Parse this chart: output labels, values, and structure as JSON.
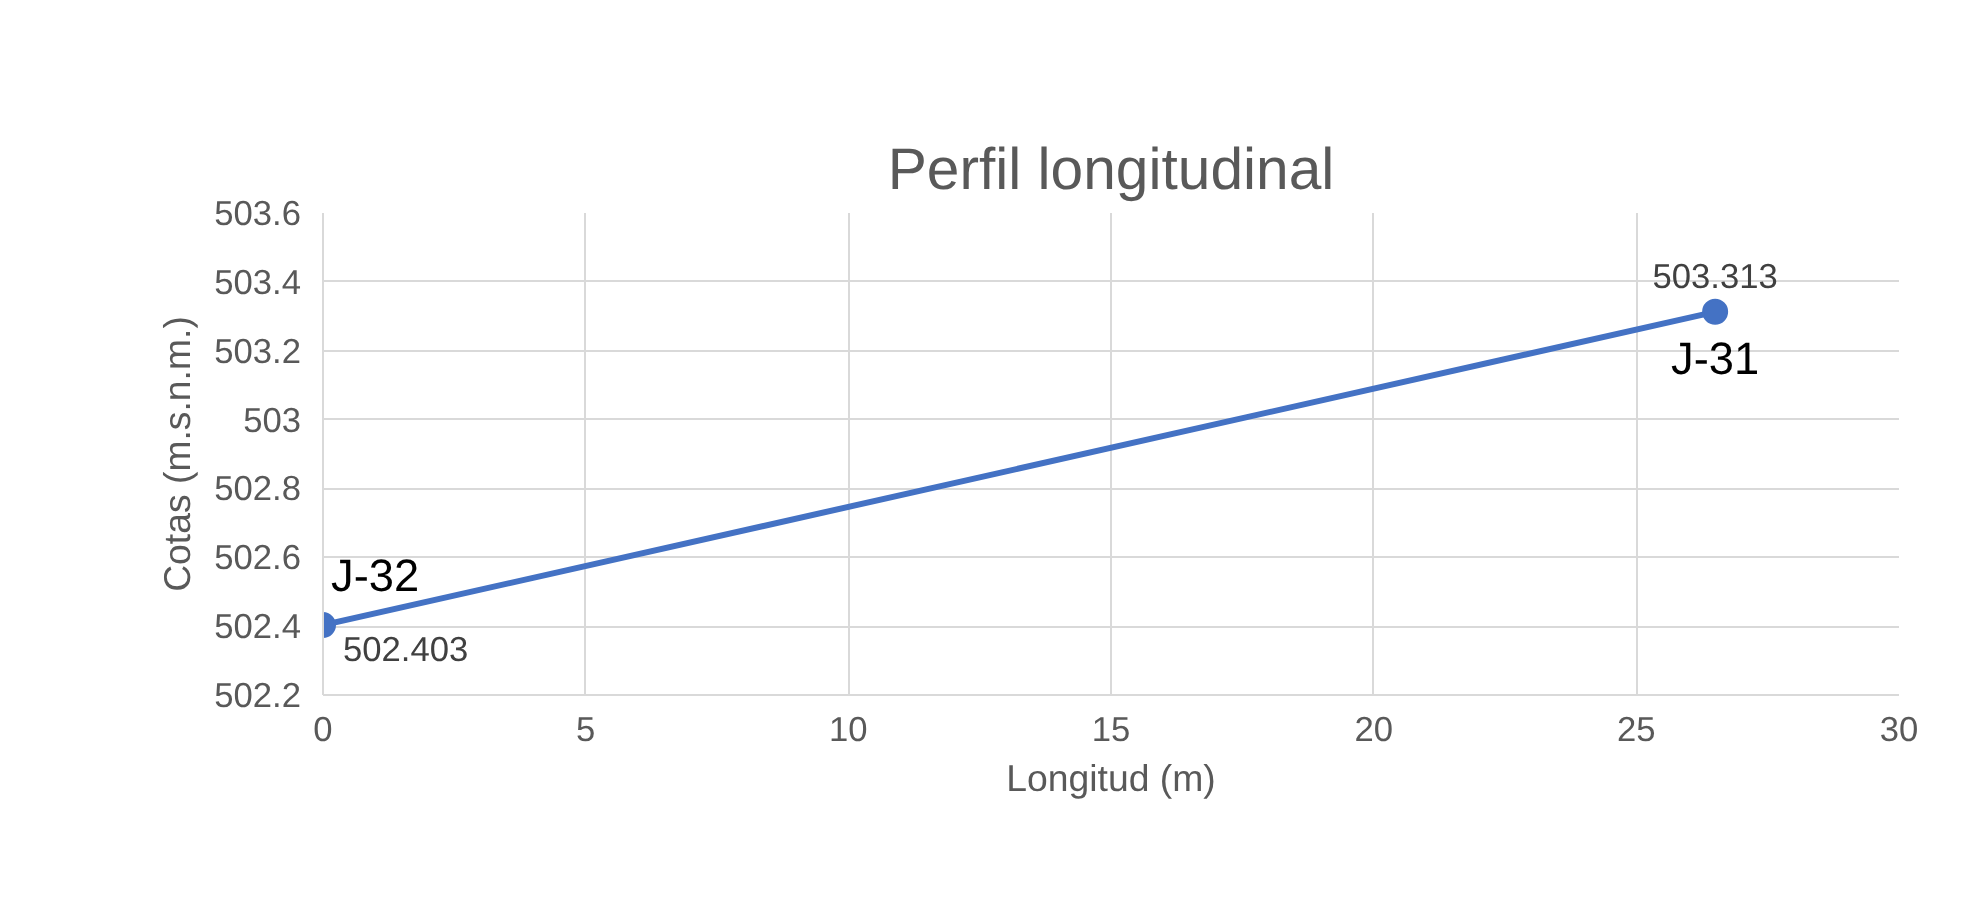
{
  "chart_data": {
    "type": "line",
    "title": "Perfil longitudinal",
    "xlabel": "Longitud (m)",
    "ylabel": "Cotas (m.s.n.m.)",
    "x": [
      0,
      26.5
    ],
    "series": [
      {
        "color": "#4472c4",
        "values": [
          502.403,
          503.313
        ],
        "value_labels": [
          "502.403",
          "503.313"
        ]
      }
    ],
    "annotations": [
      {
        "text": "J-32",
        "x": 0,
        "y": 502.403
      },
      {
        "text": "J-31",
        "x": 26.5,
        "y": 503.313
      }
    ],
    "xlim": [
      0,
      30
    ],
    "xticks": [
      0,
      5,
      10,
      15,
      20,
      25,
      30
    ],
    "ylim": [
      502.2,
      503.6
    ],
    "yticks": [
      502.2,
      502.4,
      502.6,
      502.8,
      {
        "value": 503,
        "label": "503"
      },
      503.2,
      503.4,
      503.6
    ],
    "grid": true,
    "marker": "circle",
    "line_style": "solid"
  }
}
